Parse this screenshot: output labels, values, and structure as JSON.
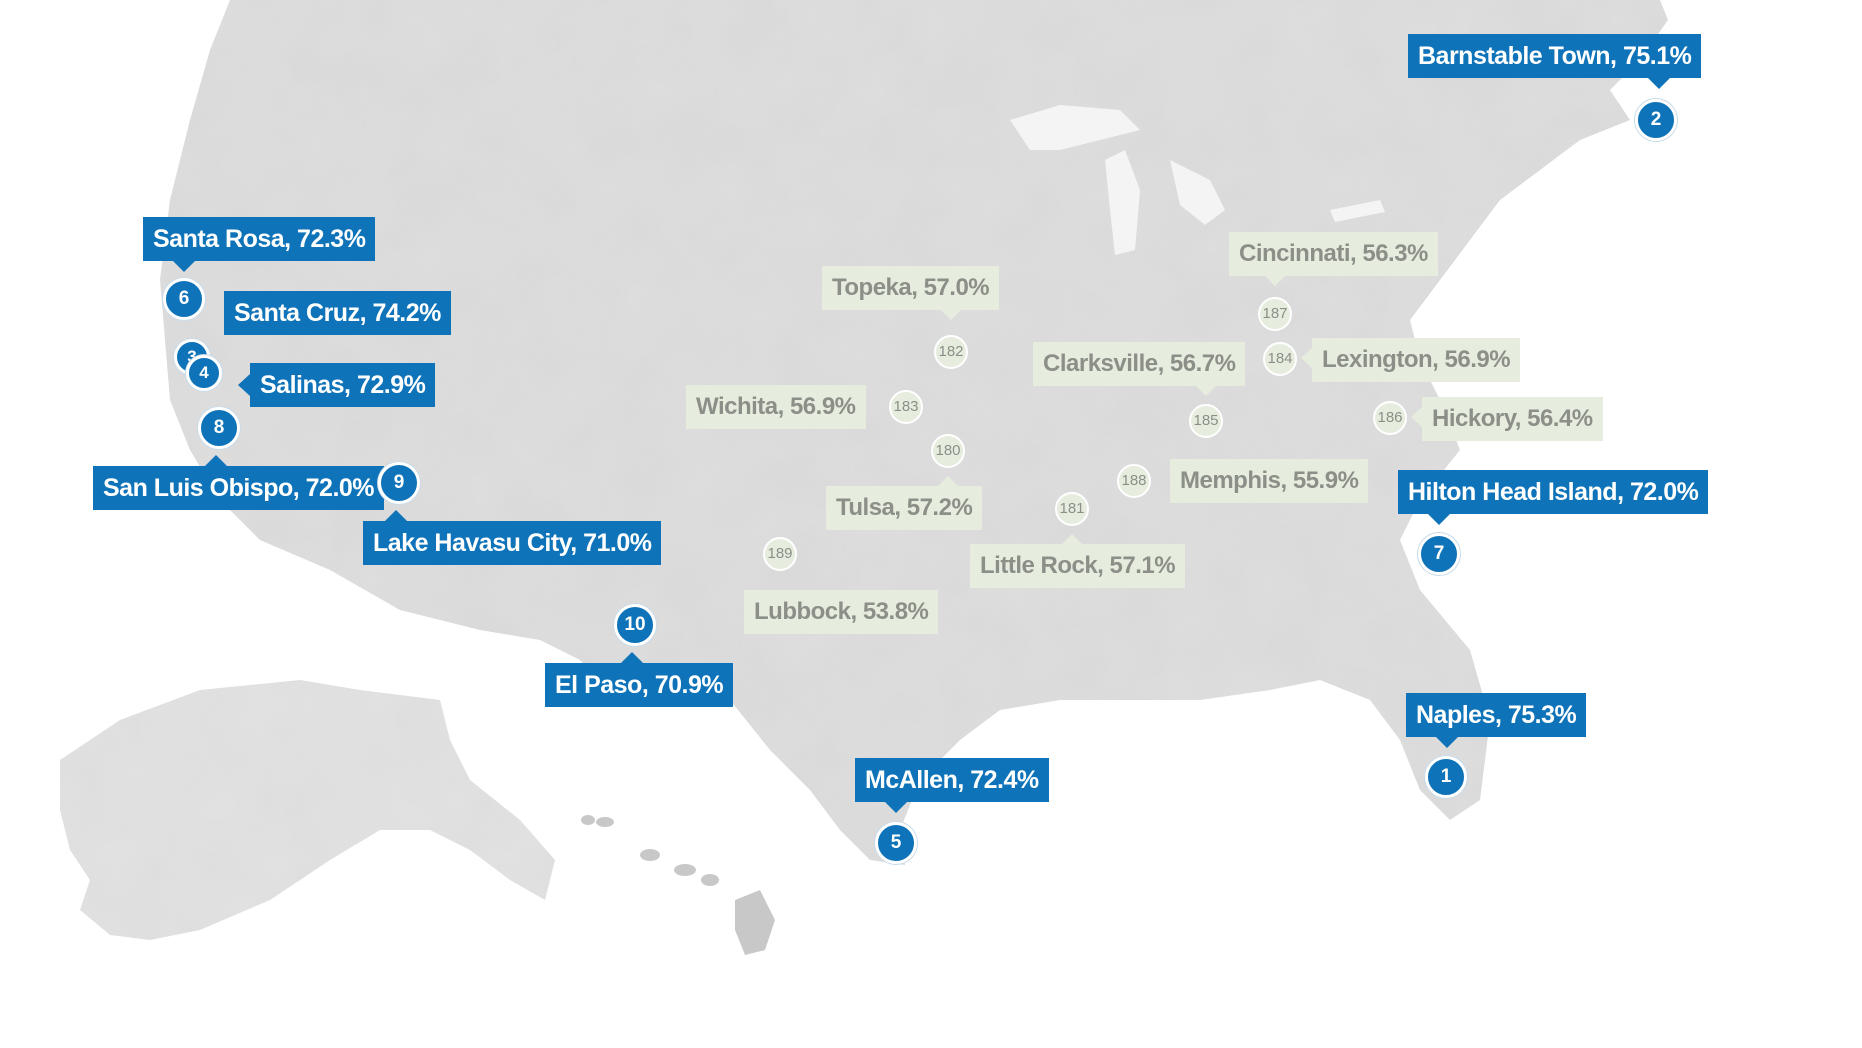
{
  "colors": {
    "top_marker": "#0e73b8",
    "bottom_marker": "#e6eddf",
    "land": "#dcdcdc"
  },
  "top_cities": [
    {
      "rank": "1",
      "label": "Naples, 75.3%"
    },
    {
      "rank": "2",
      "label": "Barnstable Town, 75.1%"
    },
    {
      "rank": "3",
      "label": "Santa Cruz, 74.2%"
    },
    {
      "rank": "4",
      "label": "Salinas, 72.9%"
    },
    {
      "rank": "5",
      "label": "McAllen, 72.4%"
    },
    {
      "rank": "6",
      "label": "Santa Rosa, 72.3%"
    },
    {
      "rank": "7",
      "label": "Hilton Head Island, 72.0%"
    },
    {
      "rank": "8",
      "label": "San Luis Obispo, 72.0%"
    },
    {
      "rank": "9",
      "label": "Lake Havasu City, 71.0%"
    },
    {
      "rank": "10",
      "label": "El Paso, 70.9%"
    }
  ],
  "bottom_cities": [
    {
      "rank": "180",
      "label": "Tulsa, 57.2%"
    },
    {
      "rank": "181",
      "label": "Little Rock, 57.1%"
    },
    {
      "rank": "182",
      "label": "Topeka, 57.0%"
    },
    {
      "rank": "183",
      "label": "Wichita, 56.9%"
    },
    {
      "rank": "184",
      "label": "Lexington, 56.9%"
    },
    {
      "rank": "185",
      "label": "Clarksville, 56.7%"
    },
    {
      "rank": "186",
      "label": "Hickory, 56.4%"
    },
    {
      "rank": "187",
      "label": "Cincinnati, 56.3%"
    },
    {
      "rank": "188",
      "label": "Memphis, 55.9%"
    },
    {
      "rank": "189",
      "label": "Lubbock, 53.8%"
    }
  ]
}
